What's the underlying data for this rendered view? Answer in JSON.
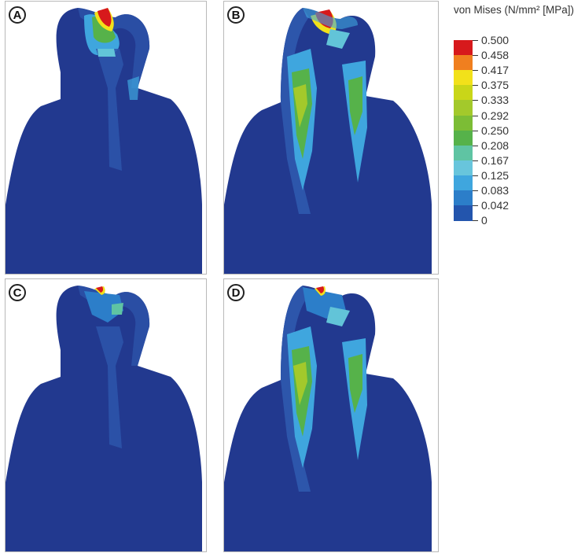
{
  "panels": [
    {
      "label": "A"
    },
    {
      "label": "B"
    },
    {
      "label": "C"
    },
    {
      "label": "D"
    }
  ],
  "legend": {
    "title": "von Mises (N/mm² [MPa])",
    "ticks": [
      "0.500",
      "0.458",
      "0.417",
      "0.375",
      "0.333",
      "0.292",
      "0.250",
      "0.208",
      "0.167",
      "0.125",
      "0.083",
      "0.042",
      "0"
    ],
    "colors": [
      "#d7191c",
      "#f07f1f",
      "#f2e11a",
      "#c9d618",
      "#a3c92b",
      "#7cbd35",
      "#56b24a",
      "#5fc4a3",
      "#68c5dc",
      "#3fa6de",
      "#2c7ec9",
      "#2355ad",
      "#1e3a8e"
    ]
  },
  "colors": {
    "base": "#22398f",
    "outline_band": "#2d56ab",
    "light_blue": "#3fa6de",
    "cyan": "#62c4d8",
    "green": "#7cbd35",
    "yellow": "#f2e11a",
    "red": "#d7191c"
  }
}
